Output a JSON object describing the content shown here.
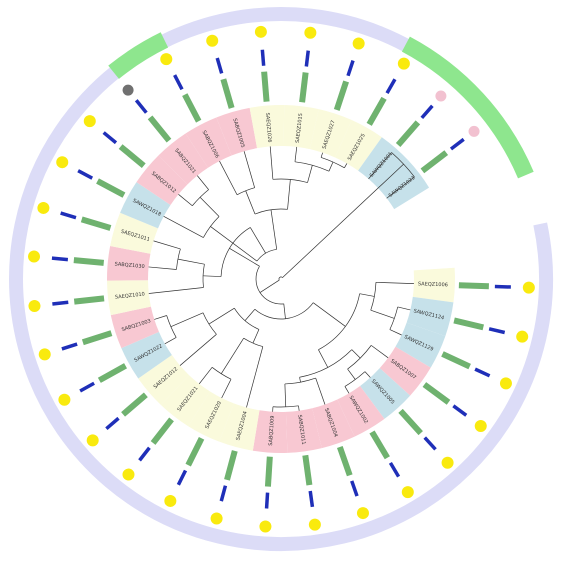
{
  "colors": {
    "outer_ring": "#dcdcf7",
    "highlight": "#8ee68e",
    "yellow": "#f9ea0e",
    "pink_dot": "#f2c1d0",
    "gray_dot": "#707070",
    "bar_green": "#6fb26f",
    "bar_blue": "#1f2fb8",
    "band_pink": "#f8c8d2",
    "band_blue": "#c6e1ea",
    "band_yellow": "#fafadc",
    "branch": "#333333"
  },
  "leaves": [
    {
      "id": "SAEQZ1006",
      "band": "yellow",
      "dot": "yellow"
    },
    {
      "id": "SAWQZ1124",
      "band": "blue",
      "dot": "yellow"
    },
    {
      "id": "SAWQZ1129",
      "band": "blue",
      "dot": "yellow"
    },
    {
      "id": "SABQZ1007",
      "band": "pink",
      "dot": "yellow"
    },
    {
      "id": "SAWQZ1005",
      "band": "blue",
      "dot": "yellow"
    },
    {
      "id": "SAWQZ1002",
      "band": "pink",
      "dot": "yellow"
    },
    {
      "id": "SABQZ1004",
      "band": "pink",
      "dot": "yellow"
    },
    {
      "id": "SABQZ1011",
      "band": "pink",
      "dot": "yellow"
    },
    {
      "id": "SABQZ1009",
      "band": "pink",
      "dot": "yellow"
    },
    {
      "id": "SAEQZ1004",
      "band": "yellow",
      "dot": "yellow"
    },
    {
      "id": "SAEQZ1020",
      "band": "yellow",
      "dot": "yellow"
    },
    {
      "id": "SAEQZ1021",
      "band": "yellow",
      "dot": "yellow"
    },
    {
      "id": "SAEQZ1012",
      "band": "yellow",
      "dot": "yellow"
    },
    {
      "id": "SAWQZ1022",
      "band": "blue",
      "dot": "yellow"
    },
    {
      "id": "SABQZ1003",
      "band": "pink",
      "dot": "yellow"
    },
    {
      "id": "SAEQZ1010",
      "band": "yellow",
      "dot": "yellow"
    },
    {
      "id": "SABQZ1030",
      "band": "pink",
      "dot": "yellow"
    },
    {
      "id": "SAEQZ1011",
      "band": "yellow",
      "dot": "yellow"
    },
    {
      "id": "SAWQZ1018",
      "band": "blue",
      "dot": "yellow"
    },
    {
      "id": "SABQZ1012",
      "band": "pink",
      "dot": "yellow"
    },
    {
      "id": "SABQZ1021",
      "band": "pink",
      "dot": "gray"
    },
    {
      "id": "SABQZ1006",
      "band": "pink",
      "dot": "yellow"
    },
    {
      "id": "SABQZ1005",
      "band": "pink",
      "dot": "yellow"
    },
    {
      "id": "SAEQZ1026",
      "band": "yellow",
      "dot": "yellow"
    },
    {
      "id": "SAEQZ1015",
      "band": "yellow",
      "dot": "yellow"
    },
    {
      "id": "SAEQZ1027",
      "band": "yellow",
      "dot": "yellow"
    },
    {
      "id": "SAEQZ1025",
      "band": "yellow",
      "dot": "yellow"
    },
    {
      "id": "SAWQZ1001",
      "band": "blue",
      "dot": "pink"
    },
    {
      "id": "SAWQZ1023",
      "band": "blue",
      "dot": "pink"
    }
  ]
}
